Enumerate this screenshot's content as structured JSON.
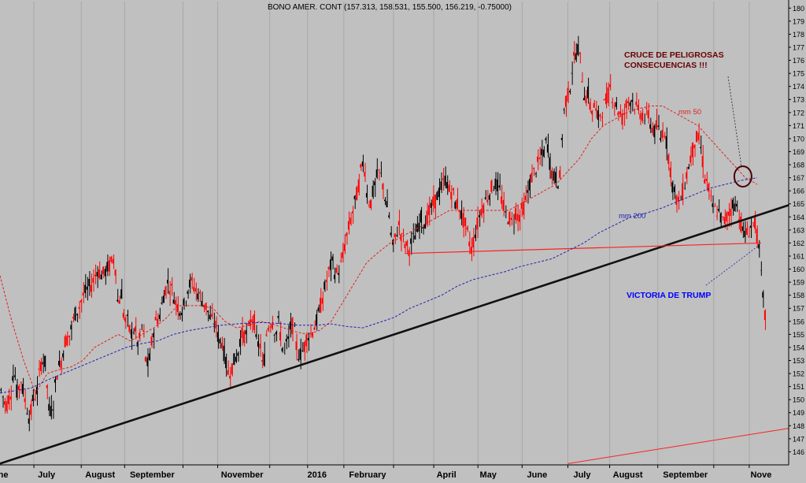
{
  "chart_data": {
    "type": "candlestick",
    "title": "BONO AMER. CONT (157.313, 158.531, 155.500, 156.219, -0.75000)",
    "ylim": [
      145,
      180.5
    ],
    "y_ticks": [
      146,
      147,
      148,
      149,
      150,
      151,
      152,
      153,
      154,
      155,
      156,
      157,
      158,
      159,
      160,
      161,
      162,
      163,
      164,
      165,
      166,
      167,
      168,
      169,
      170,
      171,
      172,
      173,
      174,
      175,
      176,
      177,
      178,
      179,
      180
    ],
    "x_domain": [
      0,
      1000
    ],
    "x_labels": [
      {
        "text": "ne",
        "x": 4
      },
      {
        "text": "July",
        "x": 59
      },
      {
        "text": "August",
        "x": 127
      },
      {
        "text": "September",
        "x": 193
      },
      {
        "text": "November",
        "x": 307
      },
      {
        "text": "2016",
        "x": 402
      },
      {
        "text": "February",
        "x": 466
      },
      {
        "text": "April",
        "x": 566
      },
      {
        "text": "May",
        "x": 619
      },
      {
        "text": "June",
        "x": 681
      },
      {
        "text": "July",
        "x": 738
      },
      {
        "text": "August",
        "x": 796
      },
      {
        "text": "September",
        "x": 869
      },
      {
        "text": "Nove",
        "x": 965
      }
    ],
    "x_gridlines": [
      43,
      103,
      158,
      232,
      276,
      342,
      390,
      436,
      499,
      550,
      606,
      662,
      720,
      773,
      834,
      905,
      950
    ],
    "price_path": [
      [
        0,
        151
      ],
      [
        8,
        149.5
      ],
      [
        14,
        150.5
      ],
      [
        18,
        152.5
      ],
      [
        22,
        150.5
      ],
      [
        27,
        151.5
      ],
      [
        32,
        150
      ],
      [
        38,
        148.5
      ],
      [
        43,
        150.2
      ],
      [
        47,
        150.5
      ],
      [
        52,
        152.8
      ],
      [
        57,
        153.2
      ],
      [
        63,
        149
      ],
      [
        67,
        149.3
      ],
      [
        72,
        152
      ],
      [
        78,
        153
      ],
      [
        83,
        154.5
      ],
      [
        89,
        155
      ],
      [
        95,
        156.5
      ],
      [
        100,
        157
      ],
      [
        106,
        158
      ],
      [
        112,
        158.5
      ],
      [
        118,
        159
      ],
      [
        124,
        160
      ],
      [
        130,
        159.5
      ],
      [
        136,
        160
      ],
      [
        142,
        160.5
      ],
      [
        146,
        161
      ],
      [
        150,
        157
      ],
      [
        154,
        158.5
      ],
      [
        158,
        156
      ],
      [
        162,
        156
      ],
      [
        166,
        155
      ],
      [
        171,
        155.5
      ],
      [
        176,
        154
      ],
      [
        181,
        156
      ],
      [
        186,
        152.5
      ],
      [
        190,
        153
      ],
      [
        194,
        155
      ],
      [
        198,
        156
      ],
      [
        203,
        156.5
      ],
      [
        208,
        158
      ],
      [
        213,
        159
      ],
      [
        218,
        158.5
      ],
      [
        223,
        157.5
      ],
      [
        228,
        157
      ],
      [
        233,
        157
      ],
      [
        238,
        158.5
      ],
      [
        243,
        159
      ],
      [
        248,
        158.5
      ],
      [
        253,
        158
      ],
      [
        258,
        157.5
      ],
      [
        263,
        157
      ],
      [
        268,
        156
      ],
      [
        273,
        156
      ],
      [
        278,
        154.5
      ],
      [
        282,
        154.5
      ],
      [
        286,
        153
      ],
      [
        290,
        152
      ],
      [
        294,
        152.5
      ],
      [
        298,
        153
      ],
      [
        302,
        153.5
      ],
      [
        306,
        155
      ],
      [
        310,
        155
      ],
      [
        314,
        155
      ],
      [
        318,
        156
      ],
      [
        322,
        156.5
      ],
      [
        326,
        154
      ],
      [
        330,
        154.5
      ],
      [
        334,
        152
      ],
      [
        338,
        155
      ],
      [
        342,
        156
      ],
      [
        346,
        156
      ],
      [
        350,
        155
      ],
      [
        354,
        156
      ],
      [
        358,
        154
      ],
      [
        362,
        154
      ],
      [
        366,
        154.5
      ],
      [
        370,
        156
      ],
      [
        374,
        155
      ],
      [
        378,
        153.5
      ],
      [
        382,
        153.5
      ],
      [
        386,
        154
      ],
      [
        390,
        155
      ],
      [
        394,
        155
      ],
      [
        398,
        155.5
      ],
      [
        402,
        156
      ],
      [
        406,
        157
      ],
      [
        410,
        158
      ],
      [
        414,
        159
      ],
      [
        418,
        160
      ],
      [
        422,
        160.5
      ],
      [
        426,
        159.5
      ],
      [
        430,
        160
      ],
      [
        434,
        160.5
      ],
      [
        438,
        162
      ],
      [
        442,
        163
      ],
      [
        446,
        164
      ],
      [
        450,
        165
      ],
      [
        454,
        166
      ],
      [
        458,
        167.5
      ],
      [
        462,
        168.5
      ],
      [
        466,
        165.5
      ],
      [
        470,
        165
      ],
      [
        474,
        166
      ],
      [
        478,
        167
      ],
      [
        482,
        167.5
      ],
      [
        486,
        166.5
      ],
      [
        490,
        165
      ],
      [
        494,
        164
      ],
      [
        498,
        161.5
      ],
      [
        502,
        162.5
      ],
      [
        506,
        163.5
      ],
      [
        510,
        162.5
      ],
      [
        514,
        162
      ],
      [
        518,
        161.5
      ],
      [
        522,
        162
      ],
      [
        526,
        162.5
      ],
      [
        530,
        163
      ],
      [
        534,
        164
      ],
      [
        538,
        163.5
      ],
      [
        542,
        164
      ],
      [
        546,
        164.5
      ],
      [
        550,
        165
      ],
      [
        554,
        165.5
      ],
      [
        558,
        166
      ],
      [
        562,
        166.5
      ],
      [
        566,
        167
      ],
      [
        570,
        166
      ],
      [
        574,
        166
      ],
      [
        578,
        165
      ],
      [
        582,
        165
      ],
      [
        586,
        164
      ],
      [
        590,
        163.5
      ],
      [
        594,
        162.5
      ],
      [
        598,
        161.5
      ],
      [
        602,
        162.5
      ],
      [
        606,
        163.5
      ],
      [
        610,
        164.5
      ],
      [
        614,
        165
      ],
      [
        618,
        165.5
      ],
      [
        622,
        166
      ],
      [
        626,
        166.5
      ],
      [
        630,
        166.5
      ],
      [
        634,
        166
      ],
      [
        638,
        165
      ],
      [
        642,
        164
      ],
      [
        646,
        164
      ],
      [
        650,
        163.5
      ],
      [
        654,
        164.5
      ],
      [
        658,
        164
      ],
      [
        662,
        164.5
      ],
      [
        666,
        165
      ],
      [
        670,
        166
      ],
      [
        674,
        167
      ],
      [
        678,
        167.5
      ],
      [
        682,
        168
      ],
      [
        686,
        168.5
      ],
      [
        690,
        169
      ],
      [
        694,
        170
      ],
      [
        698,
        168
      ],
      [
        702,
        167
      ],
      [
        706,
        167
      ],
      [
        710,
        166.5
      ],
      [
        714,
        171.5
      ],
      [
        718,
        173
      ],
      [
        722,
        173.5
      ],
      [
        726,
        175.5
      ],
      [
        730,
        176.5
      ],
      [
        734,
        177
      ],
      [
        738,
        175
      ],
      [
        742,
        173
      ],
      [
        746,
        173.5
      ],
      [
        750,
        172
      ],
      [
        754,
        172.5
      ],
      [
        758,
        171.5
      ],
      [
        762,
        172
      ],
      [
        766,
        172.5
      ],
      [
        770,
        173
      ],
      [
        774,
        174
      ],
      [
        778,
        173
      ],
      [
        782,
        172.5
      ],
      [
        786,
        172
      ],
      [
        790,
        171.5
      ],
      [
        794,
        172.5
      ],
      [
        798,
        173
      ],
      [
        802,
        173
      ],
      [
        806,
        172.5
      ],
      [
        810,
        172
      ],
      [
        814,
        172
      ],
      [
        818,
        171.5
      ],
      [
        822,
        172
      ],
      [
        826,
        171
      ],
      [
        830,
        170.5
      ],
      [
        834,
        171
      ],
      [
        838,
        170
      ],
      [
        842,
        171
      ],
      [
        846,
        169.5
      ],
      [
        850,
        168
      ],
      [
        854,
        166
      ],
      [
        858,
        165.5
      ],
      [
        862,
        165
      ],
      [
        866,
        166
      ],
      [
        870,
        167
      ],
      [
        874,
        168
      ],
      [
        878,
        169
      ],
      [
        882,
        170
      ],
      [
        886,
        170
      ],
      [
        890,
        169
      ],
      [
        894,
        167
      ],
      [
        898,
        166.5
      ],
      [
        902,
        165
      ],
      [
        906,
        164.5
      ],
      [
        910,
        164.5
      ],
      [
        914,
        164
      ],
      [
        918,
        163.5
      ],
      [
        922,
        164
      ],
      [
        926,
        164.5
      ],
      [
        930,
        165
      ],
      [
        934,
        165
      ],
      [
        938,
        164
      ],
      [
        942,
        163
      ],
      [
        946,
        162.5
      ],
      [
        950,
        163
      ],
      [
        954,
        163.5
      ],
      [
        958,
        163.5
      ],
      [
        962,
        162
      ],
      [
        966,
        159
      ],
      [
        969,
        157
      ],
      [
        971,
        156.2
      ]
    ],
    "ma50_path": [
      [
        0,
        159.5
      ],
      [
        15,
        156
      ],
      [
        30,
        153
      ],
      [
        45,
        150.5
      ],
      [
        60,
        152
      ],
      [
        75,
        152.3
      ],
      [
        90,
        152.5
      ],
      [
        105,
        153
      ],
      [
        120,
        154
      ],
      [
        135,
        154.5
      ],
      [
        150,
        155
      ],
      [
        165,
        154.5
      ],
      [
        180,
        155
      ],
      [
        195,
        155.5
      ],
      [
        210,
        156.2
      ],
      [
        225,
        157.2
      ],
      [
        240,
        157.2
      ],
      [
        255,
        157.2
      ],
      [
        270,
        157
      ],
      [
        285,
        156
      ],
      [
        300,
        155.5
      ],
      [
        315,
        155.7
      ],
      [
        330,
        156
      ],
      [
        345,
        155.8
      ],
      [
        360,
        155.5
      ],
      [
        375,
        155.2
      ],
      [
        390,
        155
      ],
      [
        405,
        155.3
      ],
      [
        420,
        156
      ],
      [
        435,
        157.5
      ],
      [
        450,
        159
      ],
      [
        465,
        160.5
      ],
      [
        480,
        161.3
      ],
      [
        495,
        162
      ],
      [
        510,
        162.5
      ],
      [
        525,
        163
      ],
      [
        540,
        163.5
      ],
      [
        555,
        164
      ],
      [
        570,
        164.5
      ],
      [
        585,
        164.5
      ],
      [
        600,
        164.5
      ],
      [
        615,
        164.5
      ],
      [
        630,
        164.5
      ],
      [
        645,
        164.5
      ],
      [
        660,
        165
      ],
      [
        675,
        165.5
      ],
      [
        690,
        166
      ],
      [
        705,
        166.5
      ],
      [
        720,
        167.5
      ],
      [
        735,
        168.5
      ],
      [
        750,
        170
      ],
      [
        765,
        171
      ],
      [
        780,
        171.5
      ],
      [
        795,
        172
      ],
      [
        810,
        172.3
      ],
      [
        825,
        172.5
      ],
      [
        840,
        172.5
      ],
      [
        855,
        172
      ],
      [
        870,
        171.5
      ],
      [
        885,
        171
      ],
      [
        900,
        170
      ],
      [
        915,
        169
      ],
      [
        930,
        168
      ],
      [
        945,
        167
      ],
      [
        960,
        166.5
      ]
    ],
    "ma200_path": [
      [
        0,
        150.5
      ],
      [
        20,
        150.7
      ],
      [
        40,
        150.9
      ],
      [
        60,
        151.5
      ],
      [
        80,
        152
      ],
      [
        100,
        152.5
      ],
      [
        120,
        153
      ],
      [
        140,
        153.5
      ],
      [
        160,
        154
      ],
      [
        180,
        154.3
      ],
      [
        200,
        154.5
      ],
      [
        220,
        155
      ],
      [
        240,
        155.3
      ],
      [
        260,
        155.5
      ],
      [
        280,
        155.7
      ],
      [
        300,
        155.8
      ],
      [
        320,
        155.9
      ],
      [
        340,
        155.9
      ],
      [
        360,
        155.8
      ],
      [
        380,
        155.7
      ],
      [
        400,
        155.7
      ],
      [
        420,
        155.8
      ],
      [
        440,
        155.6
      ],
      [
        460,
        155.5
      ],
      [
        480,
        155.9
      ],
      [
        500,
        156.3
      ],
      [
        520,
        157
      ],
      [
        540,
        157.5
      ],
      [
        560,
        158
      ],
      [
        580,
        158.7
      ],
      [
        600,
        159.2
      ],
      [
        620,
        159.5
      ],
      [
        640,
        159.8
      ],
      [
        660,
        160.2
      ],
      [
        680,
        160.5
      ],
      [
        700,
        160.8
      ],
      [
        720,
        161.4
      ],
      [
        740,
        162
      ],
      [
        760,
        162.8
      ],
      [
        780,
        163.4
      ],
      [
        800,
        164
      ],
      [
        820,
        164.3
      ],
      [
        840,
        164.7
      ],
      [
        860,
        165.2
      ],
      [
        880,
        165.7
      ],
      [
        900,
        166.2
      ],
      [
        920,
        166.5
      ],
      [
        940,
        166.8
      ],
      [
        960,
        167
      ]
    ],
    "trendline": [
      [
        0,
        145.1
      ],
      [
        1000,
        164.9
      ]
    ],
    "support_line": [
      [
        513,
        161.2
      ],
      [
        965,
        162
      ]
    ],
    "lower_red_line": [
      [
        720,
        145.1
      ],
      [
        1000,
        147.8
      ]
    ],
    "crossover": {
      "x": 942,
      "y": 167.1,
      "rx": 11,
      "ry": 13
    },
    "annotations": {
      "crossover_text_1": "CRUCE DE PELIGROSAS",
      "crossover_text_2": "CONSECUENCIAS !!!",
      "event_text": "VICTORIA DE TRUMP",
      "ma50_label": "mm 50",
      "ma200_label": "mm 200"
    },
    "colors": {
      "background": "#c0c0c0",
      "candle_up": "#000000",
      "candle_down": "#ff0000",
      "ma50": "#e02020",
      "ma200": "#2020b0",
      "trendline": "#111111",
      "support": "#ff2020",
      "crossover_text": "#6a0000",
      "event_text": "#0000ff",
      "circle": "#4a0000"
    }
  }
}
